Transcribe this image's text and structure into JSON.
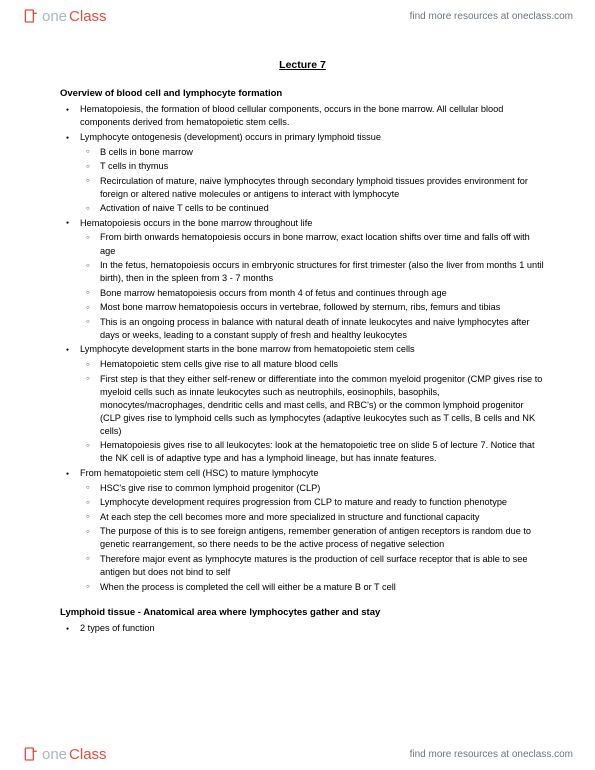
{
  "brand": {
    "one": "one",
    "class": "Class"
  },
  "tagline": "find more resources at oneclass.com",
  "lecture_title": "Lecture 7",
  "sections": [
    {
      "title": "Overview of blood cell and lymphocyte formation",
      "items": [
        {
          "t": "Hematopoiesis, the formation of blood cellular components, occurs in the bone marrow. All cellular blood components derived from hematopoietic stem cells."
        },
        {
          "t": "Lymphocyte ontogenesis (development) occurs in primary lymphoid tissue",
          "sub": [
            "B cells in bone marrow",
            "T cells in thymus",
            "Recirculation of mature, naive lymphocytes through secondary lymphoid tissues provides environment for foreign or altered native molecules or antigens to interact with lymphocyte",
            "Activation of naive T cells to be continued"
          ]
        },
        {
          "t": "Hematopoiesis occurs in the bone marrow throughout life",
          "sub": [
            "From birth onwards hematopoiesis occurs in bone marrow, exact location shifts over time and falls off with age",
            "In the fetus, hematopoiesis occurs in embryonic structures for first trimester (also the liver from months 1 until birth), then in the spleen from 3 - 7 months",
            "Bone marrow hematopoiesis occurs from month 4 of fetus and continues through age",
            "Most bone marrow hematopoiesis occurs in vertebrae, followed by sternum, ribs, femurs and tibias",
            "This is an ongoing process in balance with natural death of innate leukocytes and naive lymphocytes after days or weeks, leading to a constant supply of fresh and healthy leukocytes"
          ]
        },
        {
          "t": "Lymphocyte development starts in the bone marrow from hematopoietic stem cells",
          "sub": [
            "Hematopoietic stem cells give rise to all mature blood cells",
            "First step is that they either self-renew or differentiate into the common myeloid progenitor (CMP gives rise to myeloid cells such as innate leukocytes such as neutrophils, eosinophils, basophils, monocytes/macrophages, dendritic cells and mast cells, and RBC's) or the common lymphoid progenitor (CLP gives rise to lymphoid cells such as lymphocytes (adaptive leukocytes such as T cells, B cells and NK cells)",
            "Hematopoiesis gives rise to all leukocytes: look at the hematopoietic tree on slide 5 of lecture 7. Notice that the NK cell is of adaptive type and has a lymphoid lineage, but has innate features."
          ]
        },
        {
          "t": "From hematopoietic stem cell (HSC) to mature lymphocyte",
          "sub": [
            "HSC's give rise to common lymphoid progenitor (CLP)",
            "Lymphocyte development requires progression from CLP to mature and ready to function phenotype",
            "At each step the cell becomes more and more specialized in structure and functional capacity",
            "The purpose of this is to see foreign antigens, remember generation of antigen receptors is random due to genetic rearrangement, so there needs to be the active process of negative selection",
            "Therefore major event as lymphocyte matures is the production of cell surface receptor that is able to see antigen but does not bind to self",
            "When the process is completed the cell will either be a mature B or T cell"
          ]
        }
      ]
    },
    {
      "title": "Lymphoid tissue - Anatomical area where lymphocytes gather and stay",
      "items": [
        {
          "t": "2 types of function"
        }
      ]
    }
  ]
}
